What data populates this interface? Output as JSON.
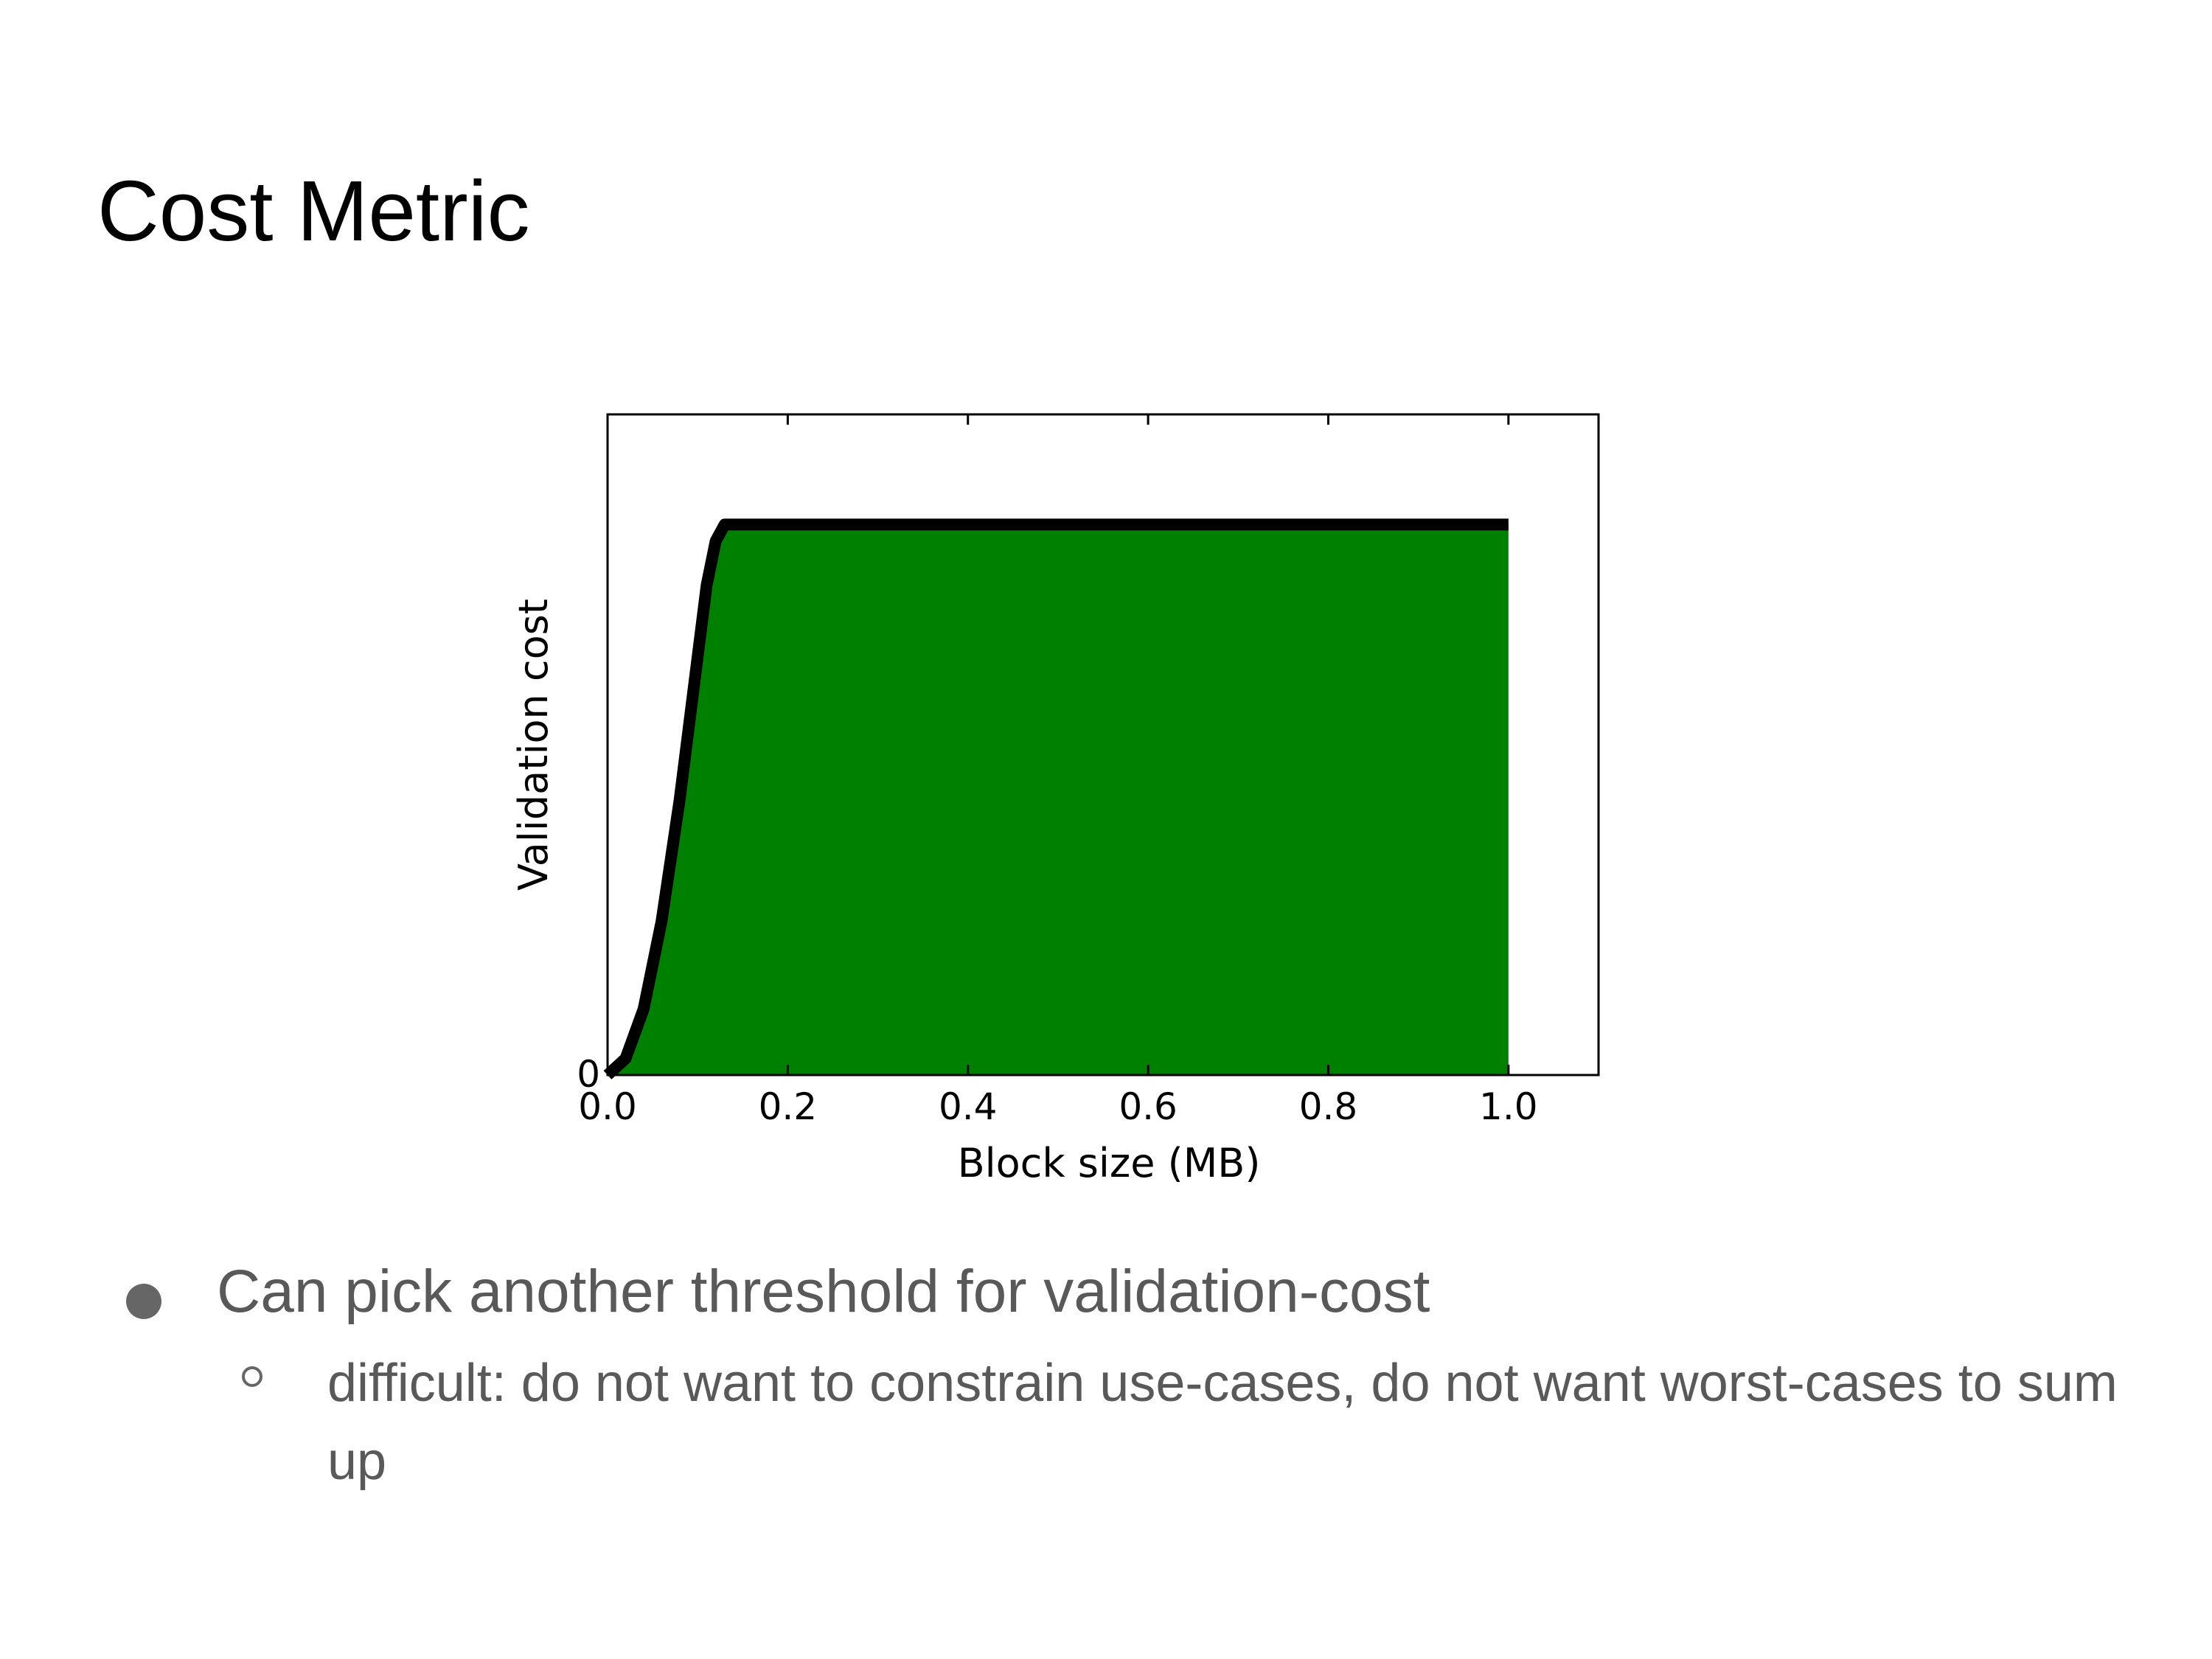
{
  "slide": {
    "title": "Cost Metric",
    "bullets": [
      {
        "level": 1,
        "text": "Can pick another threshold for validation-cost"
      },
      {
        "level": 2,
        "text": "difficult: do not want to constrain use-cases, do not want worst-cases to sum up"
      }
    ]
  },
  "chart_data": {
    "type": "area",
    "title": "",
    "xlabel": "Block size (MB)",
    "ylabel": "Validation cost",
    "xlim": [
      0.0,
      1.1
    ],
    "ylim": [
      0,
      1.2
    ],
    "xticks": [
      "0.0",
      "0.2",
      "0.4",
      "0.6",
      "0.8",
      "1.0"
    ],
    "yticks": [
      "0"
    ],
    "grid": false,
    "fill_color": "#008000",
    "line_color": "#000000",
    "series": [
      {
        "x": [
          0.0,
          0.02,
          0.04,
          0.06,
          0.08,
          0.1,
          0.11,
          0.12,
          0.13,
          1.0
        ],
        "values": [
          0.0,
          0.03,
          0.12,
          0.28,
          0.5,
          0.76,
          0.89,
          0.97,
          1.0,
          1.0
        ]
      }
    ]
  }
}
